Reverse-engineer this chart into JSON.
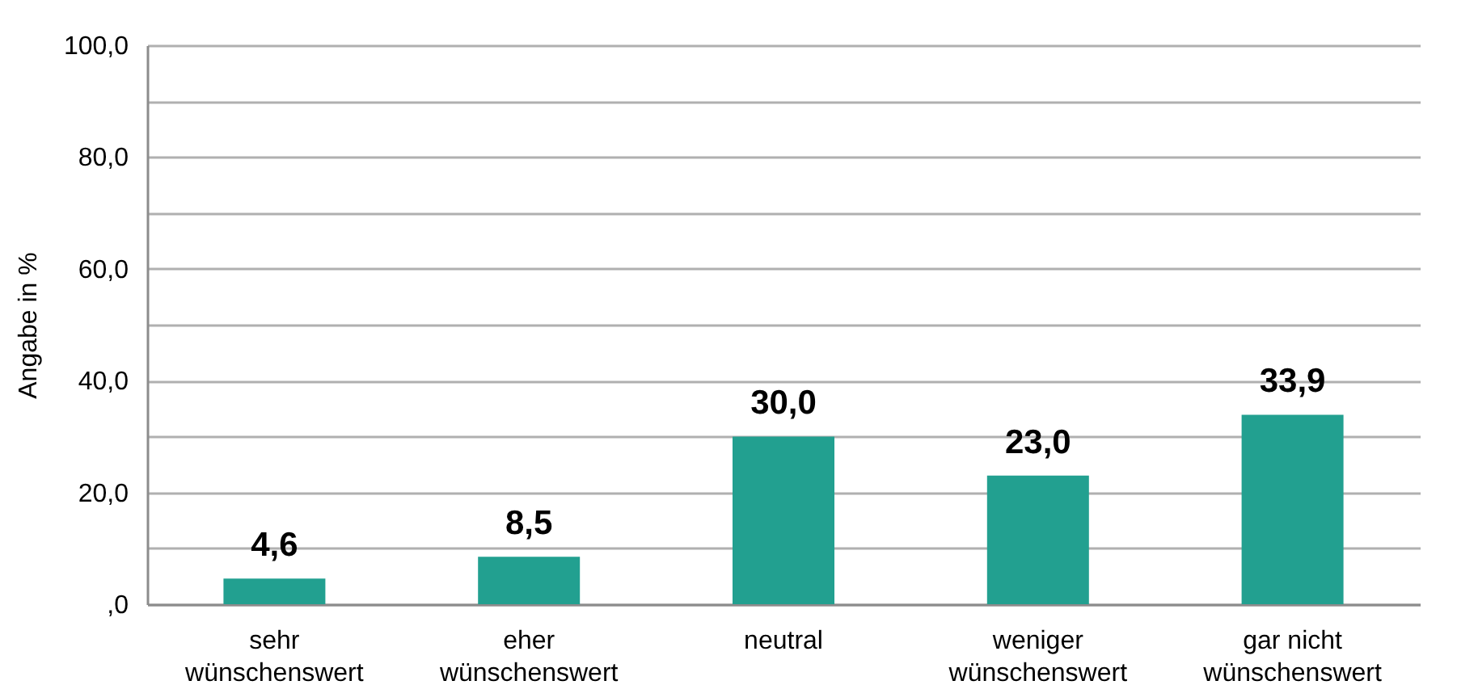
{
  "chart_data": {
    "type": "bar",
    "ylabel": "Angabe in %",
    "categories": [
      "sehr wünschenswert",
      "eher wünschenswert",
      "neutral",
      "weniger wünschenswert",
      "gar nicht wünschenswert"
    ],
    "values": [
      4.6,
      8.5,
      30.0,
      23.0,
      33.9
    ],
    "value_labels": [
      "4,6",
      "8,5",
      "30,0",
      "23,0",
      "33,9"
    ],
    "color": "#22a090",
    "ylim": [
      0,
      100
    ],
    "yticks": [
      {
        "value": 0,
        "label": ",0"
      },
      {
        "value": 10,
        "label": null
      },
      {
        "value": 20,
        "label": "20,0"
      },
      {
        "value": 30,
        "label": null
      },
      {
        "value": 40,
        "label": "40,0"
      },
      {
        "value": 50,
        "label": null
      },
      {
        "value": 60,
        "label": "60,0"
      },
      {
        "value": 70,
        "label": null
      },
      {
        "value": 80,
        "label": "80,0"
      },
      {
        "value": 90,
        "label": null
      },
      {
        "value": 100,
        "label": "100,0"
      }
    ],
    "grid": true
  }
}
